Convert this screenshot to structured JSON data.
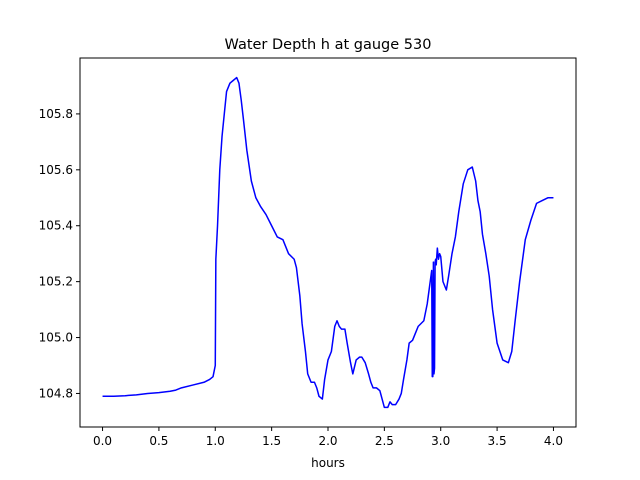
{
  "chart_data": {
    "type": "line",
    "title": "Water Depth h at gauge 530",
    "xlabel": "hours",
    "ylabel": "",
    "xlim": [
      -0.2,
      4.2
    ],
    "ylim": [
      104.68,
      106.0
    ],
    "xticks": [
      0.0,
      0.5,
      1.0,
      1.5,
      2.0,
      2.5,
      3.0,
      3.5,
      4.0
    ],
    "xtick_labels": [
      "0.0",
      "0.5",
      "1.0",
      "1.5",
      "2.0",
      "2.5",
      "3.0",
      "3.5",
      "4.0"
    ],
    "yticks": [
      104.8,
      105.0,
      105.2,
      105.4,
      105.6,
      105.8
    ],
    "ytick_labels": [
      "104.8",
      "105.0",
      "105.2",
      "105.4",
      "105.6",
      "105.8"
    ],
    "grid": false,
    "series": [
      {
        "color": "#0000ff",
        "x": [
          0.0,
          0.1,
          0.2,
          0.3,
          0.4,
          0.5,
          0.6,
          0.65,
          0.7,
          0.8,
          0.9,
          0.95,
          0.98,
          1.0,
          1.005,
          1.02,
          1.04,
          1.06,
          1.08,
          1.1,
          1.13,
          1.16,
          1.19,
          1.21,
          1.22,
          1.23,
          1.25,
          1.28,
          1.32,
          1.36,
          1.4,
          1.45,
          1.5,
          1.55,
          1.6,
          1.65,
          1.7,
          1.72,
          1.75,
          1.77,
          1.8,
          1.82,
          1.85,
          1.87,
          1.88,
          1.9,
          1.92,
          1.95,
          1.97,
          2.0,
          2.03,
          2.06,
          2.08,
          2.1,
          2.12,
          2.15,
          2.17,
          2.2,
          2.22,
          2.25,
          2.28,
          2.3,
          2.33,
          2.36,
          2.38,
          2.4,
          2.43,
          2.46,
          2.48,
          2.5,
          2.53,
          2.55,
          2.57,
          2.6,
          2.63,
          2.65,
          2.67,
          2.7,
          2.72,
          2.75,
          2.78,
          2.8,
          2.85,
          2.88,
          2.9,
          2.92,
          2.925,
          2.93,
          2.935,
          2.94,
          2.945,
          2.95,
          2.955,
          2.96,
          2.97,
          2.98,
          2.99,
          3.0,
          3.02,
          3.05,
          3.07,
          3.1,
          3.13,
          3.16,
          3.2,
          3.24,
          3.28,
          3.31,
          3.33,
          3.35,
          3.37,
          3.4,
          3.43,
          3.46,
          3.5,
          3.55,
          3.6,
          3.63,
          3.66,
          3.7,
          3.75,
          3.8,
          3.85,
          3.9,
          3.95,
          4.0
        ],
        "y": [
          104.79,
          104.79,
          104.792,
          104.795,
          104.8,
          104.803,
          104.808,
          104.812,
          104.82,
          104.83,
          104.84,
          104.85,
          104.86,
          104.9,
          105.28,
          105.4,
          105.6,
          105.72,
          105.8,
          105.88,
          105.91,
          105.92,
          105.93,
          105.91,
          105.88,
          105.85,
          105.78,
          105.67,
          105.56,
          105.5,
          105.47,
          105.44,
          105.4,
          105.36,
          105.35,
          105.3,
          105.28,
          105.25,
          105.15,
          105.05,
          104.95,
          104.87,
          104.84,
          104.84,
          104.84,
          104.82,
          104.79,
          104.78,
          104.85,
          104.92,
          104.95,
          105.04,
          105.06,
          105.04,
          105.03,
          105.03,
          104.98,
          104.91,
          104.87,
          104.92,
          104.93,
          104.93,
          104.91,
          104.87,
          104.84,
          104.82,
          104.82,
          104.81,
          104.78,
          104.75,
          104.75,
          104.77,
          104.76,
          104.76,
          104.78,
          104.8,
          104.85,
          104.92,
          104.98,
          104.99,
          105.02,
          105.04,
          105.06,
          105.12,
          105.18,
          105.24,
          104.86,
          104.86,
          105.27,
          104.87,
          104.89,
          105.27,
          105.28,
          105.26,
          105.32,
          105.28,
          105.3,
          105.29,
          105.2,
          105.17,
          105.22,
          105.3,
          105.36,
          105.45,
          105.55,
          105.6,
          105.61,
          105.56,
          105.49,
          105.45,
          105.37,
          105.3,
          105.22,
          105.1,
          104.98,
          104.92,
          104.91,
          104.95,
          105.06,
          105.2,
          105.35,
          105.42,
          105.48,
          105.49,
          105.5,
          105.5
        ]
      }
    ]
  }
}
